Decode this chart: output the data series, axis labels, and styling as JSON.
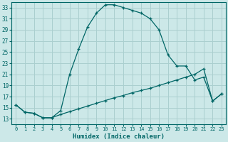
{
  "xlabel": "Humidex (Indice chaleur)",
  "bg_color": "#cce8e8",
  "grid_color": "#aacfcf",
  "line_color": "#006666",
  "xlim": [
    -0.5,
    23.5
  ],
  "ylim": [
    12,
    34
  ],
  "xticks": [
    0,
    1,
    2,
    3,
    4,
    5,
    6,
    7,
    8,
    9,
    10,
    11,
    12,
    13,
    14,
    15,
    16,
    17,
    18,
    19,
    20,
    21,
    22,
    23
  ],
  "yticks": [
    13,
    15,
    17,
    19,
    21,
    23,
    25,
    27,
    29,
    31,
    33
  ],
  "curve1_x": [
    0,
    1,
    2,
    3,
    4,
    5,
    6,
    7,
    8,
    9,
    10,
    11,
    12,
    13,
    14,
    15,
    16,
    17,
    18,
    19,
    20,
    21,
    22,
    23
  ],
  "curve1_y": [
    15.5,
    14.2,
    14.0,
    13.2,
    13.2,
    14.5,
    21.0,
    25.5,
    29.5,
    32.0,
    33.5,
    33.5,
    33.0,
    32.5,
    32.0,
    31.0,
    29.0,
    24.5,
    22.5,
    22.5,
    20.0,
    20.5,
    16.2,
    17.5
  ],
  "curve2_x": [
    0,
    1,
    2,
    3,
    4,
    5,
    6,
    7,
    8,
    9,
    10,
    11,
    12,
    13,
    14,
    15,
    16,
    17,
    18,
    19,
    20,
    21,
    22,
    23
  ],
  "curve2_y": [
    15.5,
    14.2,
    14.0,
    13.2,
    13.2,
    13.8,
    14.3,
    14.8,
    15.3,
    15.8,
    16.3,
    16.8,
    17.2,
    17.7,
    18.1,
    18.5,
    19.0,
    19.5,
    20.0,
    20.5,
    21.0,
    22.0,
    16.2,
    17.5
  ]
}
